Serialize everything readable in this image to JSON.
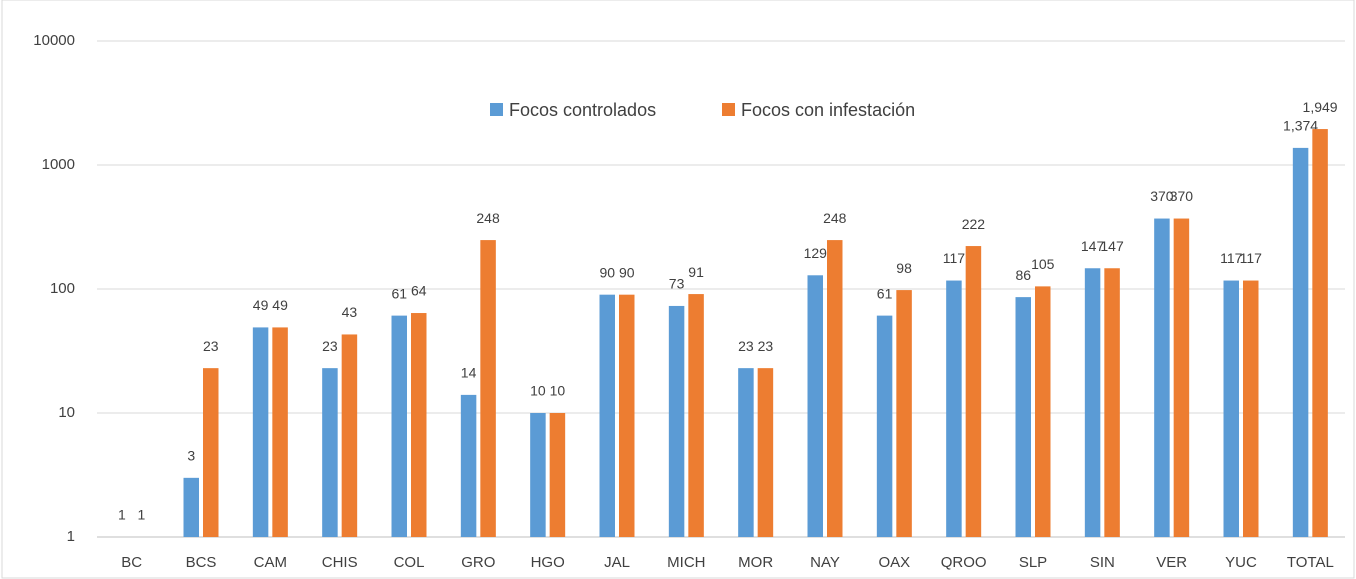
{
  "chart_data": {
    "type": "bar",
    "categories": [
      "BC",
      "BCS",
      "CAM",
      "CHIS",
      "COL",
      "GRO",
      "HGO",
      "JAL",
      "MICH",
      "MOR",
      "NAY",
      "OAX",
      "QROO",
      "SLP",
      "SIN",
      "VER",
      "YUC",
      "TOTAL"
    ],
    "series": [
      {
        "name": "Focos controlados",
        "color": "#5b9bd5",
        "values": [
          1,
          3,
          49,
          23,
          61,
          14,
          10,
          90,
          73,
          23,
          129,
          61,
          117,
          86,
          147,
          370,
          117,
          1374
        ],
        "value_labels": [
          "1",
          "3",
          "49",
          "23",
          "61",
          "14",
          "10",
          "90",
          "73",
          "23",
          "129",
          "61",
          "117",
          "86",
          "147",
          "370",
          "117",
          "1,374"
        ]
      },
      {
        "name": "Focos con infestación",
        "color": "#ed7d31",
        "values": [
          1,
          23,
          49,
          43,
          64,
          248,
          10,
          90,
          91,
          23,
          248,
          98,
          222,
          105,
          147,
          370,
          117,
          1949
        ],
        "value_labels": [
          "1",
          "23",
          "49",
          "43",
          "64",
          "248",
          "10",
          "90",
          "91",
          "23",
          "248",
          "98",
          "222",
          "105",
          "147",
          "370",
          "117",
          "1,949"
        ]
      }
    ],
    "ylim": [
      1,
      10000
    ],
    "yticks": [
      1,
      10,
      100,
      1000,
      10000
    ],
    "log_scale": true,
    "grid": true,
    "legend": "top"
  }
}
